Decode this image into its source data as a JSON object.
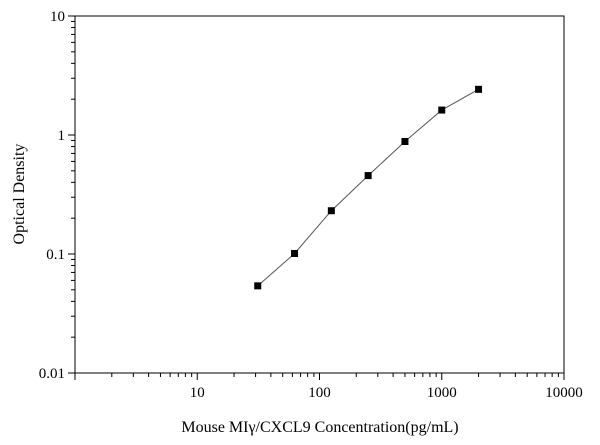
{
  "chart_data": {
    "type": "line",
    "title": "",
    "xlabel": "Mouse MIγ/CXCL9  Concentration(pg/mL)",
    "ylabel": "Optical Density",
    "x_scale": "log",
    "y_scale": "log",
    "xlim": [
      1,
      10000
    ],
    "ylim": [
      0.01,
      10
    ],
    "x_tick_labels": [
      "10",
      "100",
      "1000",
      "10000"
    ],
    "y_tick_labels": [
      "0.01",
      "0.1",
      "1",
      "10"
    ],
    "grid": false,
    "legend": "none",
    "series": [
      {
        "x": [
          31.25,
          62.5,
          125,
          250,
          500,
          1000,
          2000
        ],
        "y": [
          0.054,
          0.101,
          0.231,
          0.456,
          0.882,
          1.62,
          2.42
        ],
        "marker": "square",
        "color": "#000000"
      }
    ]
  }
}
